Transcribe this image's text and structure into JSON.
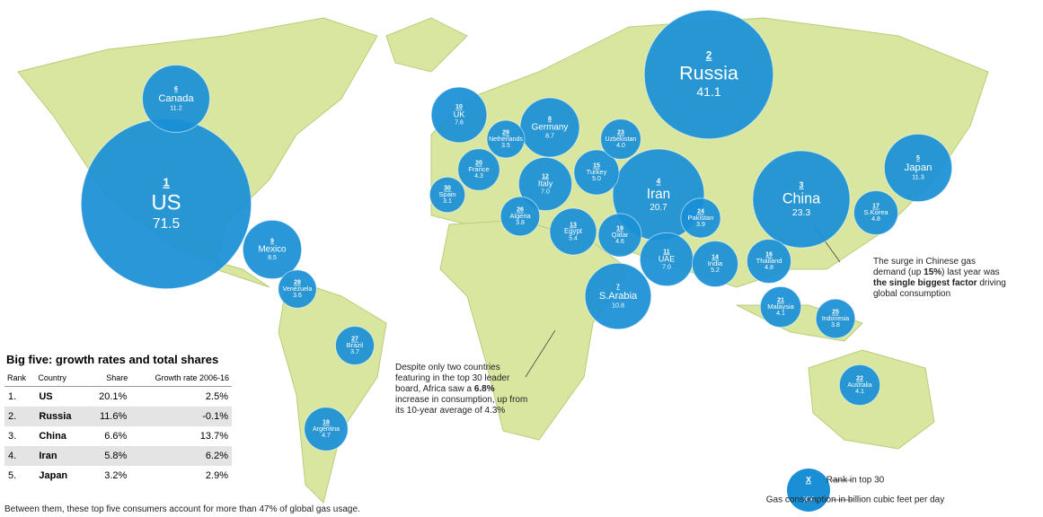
{
  "bubbles": [
    {
      "rank": 1,
      "country": "US",
      "value": 71.5
    },
    {
      "rank": 2,
      "country": "Russia",
      "value": 41.1
    },
    {
      "rank": 3,
      "country": "China",
      "value": 23.3
    },
    {
      "rank": 4,
      "country": "Iran",
      "value": 20.7
    },
    {
      "rank": 5,
      "country": "Japan",
      "value": 11.3
    },
    {
      "rank": 6,
      "country": "Canada",
      "value": 11.2
    },
    {
      "rank": 7,
      "country": "S.Arabia",
      "value": 10.8
    },
    {
      "rank": 8,
      "country": "Germany",
      "value": 8.7
    },
    {
      "rank": 9,
      "country": "Mexico",
      "value": 8.5
    },
    {
      "rank": 10,
      "country": "UK",
      "value": 7.6
    },
    {
      "rank": 11,
      "country": "UAE",
      "value": 7,
      "value_label": "7.0"
    },
    {
      "rank": 12,
      "country": "Italy",
      "value": 7,
      "value_label": "7.0"
    },
    {
      "rank": 13,
      "country": "Egypt",
      "value": 5.4
    },
    {
      "rank": 14,
      "country": "India",
      "value": 5.2
    },
    {
      "rank": 15,
      "country": "Turkey",
      "value": 5,
      "value_label": "5.0"
    },
    {
      "rank": 16,
      "country": "Thailand",
      "value": 4.8
    },
    {
      "rank": 17,
      "country": "S.Korea",
      "value": 4.8
    },
    {
      "rank": 18,
      "country": "Argentina",
      "value": 4.7
    },
    {
      "rank": 19,
      "country": "Qatar",
      "value": 4.6
    },
    {
      "rank": 20,
      "country": "France",
      "value": 4.3
    },
    {
      "rank": 21,
      "country": "Malaysia",
      "value": 4.1
    },
    {
      "rank": 22,
      "country": "Australia",
      "value": 4.1
    },
    {
      "rank": 23,
      "country": "Uzbekistan",
      "value": 4,
      "value_label": "4.0"
    },
    {
      "rank": 24,
      "country": "Pakistan",
      "value": 3.9
    },
    {
      "rank": 25,
      "country": "Indonesia",
      "value": 3.8
    },
    {
      "rank": 26,
      "country": "Algeria",
      "value": 3.8
    },
    {
      "rank": 27,
      "country": "Brazil",
      "value": 3.7
    },
    {
      "rank": 28,
      "country": "Venezuela",
      "value": 3.6
    },
    {
      "rank": 29,
      "country": "Netherlands",
      "value": 3.5
    },
    {
      "rank": 30,
      "country": "Spain",
      "value": 3.1
    }
  ],
  "bubble_color": "#1a8fd6",
  "table": {
    "title": "Big five: growth rates and total shares",
    "header": [
      "Rank",
      "Country",
      "Share",
      "Growth rate 2006-16"
    ],
    "rows": [
      [
        "1.",
        "US",
        "20.1%",
        "2.5%"
      ],
      [
        "2.",
        "Russia",
        "11.6%",
        "-0.1%"
      ],
      [
        "3.",
        "China",
        "6.6%",
        "13.7%"
      ],
      [
        "4.",
        "Iran",
        "5.8%",
        "6.2%"
      ],
      [
        "5.",
        "Japan",
        "3.2%",
        "2.9%"
      ]
    ],
    "footnote": "Between them, these top five consumers account for more than 47% of global gas usage."
  },
  "annotations": [
    {
      "parts": [
        "The surge in Chinese gas demand (up ",
        "15%",
        ") last year was ",
        "the single biggest factor",
        " driving global consumption"
      ],
      "bold": [
        1,
        3
      ]
    },
    {
      "parts": [
        "Despite only two countries featuring in the top 30 leader board, Africa saw a ",
        "6.8%",
        " increase in consumption, up from its 10-year average of 4.3%"
      ],
      "bold": [
        1
      ]
    }
  ],
  "legend": {
    "rank_symbol": "X",
    "value_symbol": "XX",
    "rank_text": "Rank in top 30",
    "value_text": "Gas consumption in billion cubic feet per day"
  }
}
